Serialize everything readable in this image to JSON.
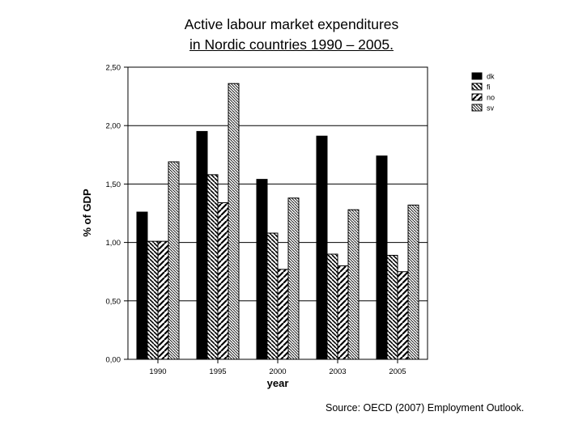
{
  "title_line1": "Active labour market expenditures",
  "title_line2": "in Nordic countries 1990 – 2005.",
  "source": "Source: OECD (2007) Employment Outlook.",
  "chart_data": {
    "type": "bar",
    "xlabel": "year",
    "ylabel": "% of GDP",
    "ylim": [
      0,
      2.5
    ],
    "y_ticks": [
      "0,00",
      "0,50",
      "1,00",
      "1,50",
      "2,00",
      "2,50"
    ],
    "grid": true,
    "legend_position": "top-right",
    "categories": [
      "1990",
      "1995",
      "2000",
      "2003",
      "2005"
    ],
    "series": [
      {
        "name": "dk",
        "values": [
          1.26,
          1.95,
          1.54,
          1.91,
          1.74
        ]
      },
      {
        "name": "fi",
        "values": [
          1.01,
          1.58,
          1.08,
          0.9,
          0.89
        ]
      },
      {
        "name": "no",
        "values": [
          1.01,
          1.34,
          0.77,
          0.8,
          0.75
        ]
      },
      {
        "name": "sv",
        "values": [
          1.69,
          2.36,
          1.38,
          1.28,
          1.32
        ]
      }
    ]
  }
}
